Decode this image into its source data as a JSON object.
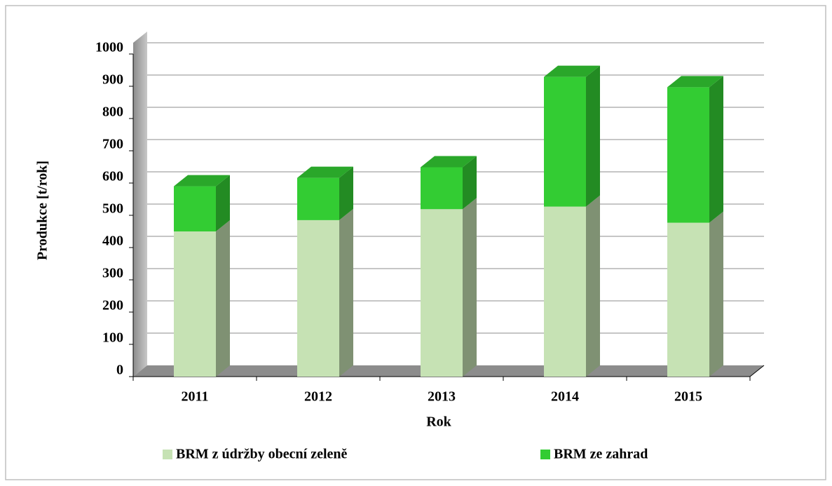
{
  "chart_data": {
    "type": "bar3d_stacked",
    "categories": [
      "2011",
      "2012",
      "2013",
      "2014",
      "2015"
    ],
    "series": [
      {
        "name": "BRM z údržby obecní zeleně",
        "color": "#c6e2b4",
        "values": [
          450,
          485,
          519,
          527,
          477
        ]
      },
      {
        "name": "BRM ze zahrad",
        "color": "#33cc33",
        "values": [
          140,
          131,
          130,
          402,
          420
        ]
      }
    ],
    "ylim": [
      0,
      1000
    ],
    "yticks": [
      0,
      100,
      200,
      300,
      400,
      500,
      600,
      700,
      800,
      900,
      1000
    ],
    "grid": true,
    "x_label": "Rok",
    "y_label": "Produkce [t/rok]",
    "legend": "bottom"
  }
}
